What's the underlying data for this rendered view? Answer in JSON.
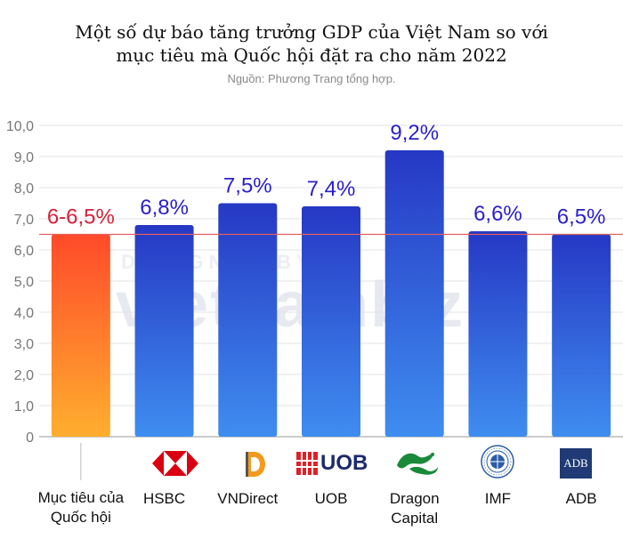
{
  "title_line1": "Một số dự báo tăng trưởng GDP của Việt Nam so với",
  "title_line2": "mục tiêu mà Quốc hội đặt ra cho năm 2022",
  "source": "Nguồn: Phương Trang tổng hợp.",
  "watermark": {
    "top": "DESIGNED BY",
    "brand": "vietnambiz"
  },
  "chart_data": {
    "type": "bar",
    "categories": [
      "Mục tiêu của Quốc hội",
      "HSBC",
      "VNDirect",
      "UOB",
      "Dragon Capital",
      "IMF",
      "ADB"
    ],
    "category_lines": [
      [
        "Mục tiêu của",
        "Quốc hội"
      ],
      [
        "HSBC"
      ],
      [
        "VNDirect"
      ],
      [
        "UOB"
      ],
      [
        "Dragon",
        "Capital"
      ],
      [
        "IMF"
      ],
      [
        "ADB"
      ]
    ],
    "values": [
      6.5,
      6.8,
      7.5,
      7.4,
      9.2,
      6.6,
      6.5
    ],
    "data_labels": [
      "6-6,5%",
      "6,8%",
      "7,5%",
      "7,4%",
      "9,2%",
      "6,6%",
      "6,5%"
    ],
    "target_range": [
      6.0,
      6.5
    ],
    "reference_line": 6.5,
    "ylim": [
      0,
      10
    ],
    "yticks": [
      "0",
      "1,0",
      "2,0",
      "3,0",
      "4,0",
      "5,0",
      "6,0",
      "7,0",
      "8,0",
      "9,0",
      "10,0"
    ],
    "colors": {
      "target_top": "#ff4a2a",
      "target_bottom": "#ffae2e",
      "bar_top": "#2638c4",
      "bar_bottom": "#3f8df0",
      "target_label": "#d4213a",
      "bar_label": "#2a1fc9",
      "reference_line": "#e06060",
      "grid": "#e3e3e3"
    },
    "grid": true
  },
  "logos": {
    "hsbc": "hsbc-logo",
    "vndirect": "vndirect-logo",
    "uob_text": "UOB",
    "dragon": "dragon-logo",
    "imf": "imf-seal-logo",
    "adb_text": "ADB"
  }
}
